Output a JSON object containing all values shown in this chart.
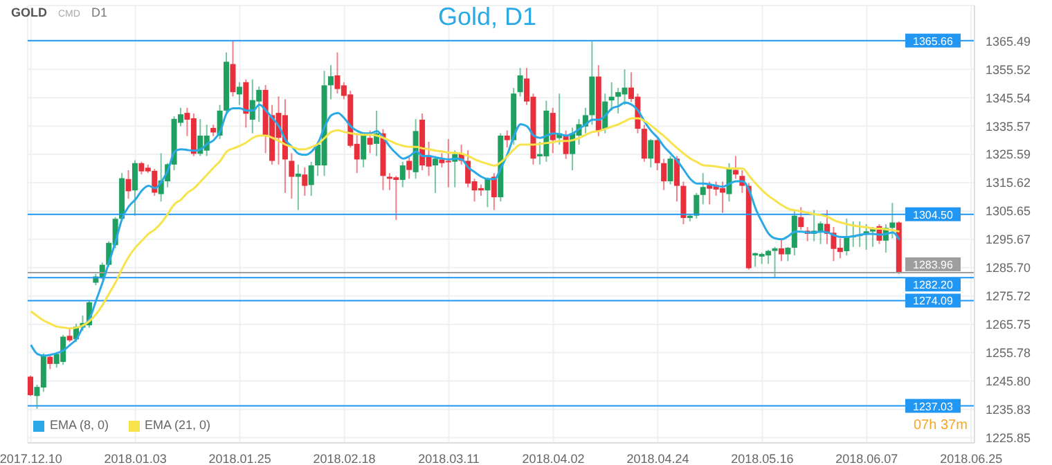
{
  "chart_data": {
    "type": "candlestick",
    "title": "Gold, D1",
    "annotations": [
      "GOLD",
      "CMD",
      "D1",
      "07h 37m"
    ],
    "categories": [
      "2017.12.10",
      null,
      null,
      null,
      null,
      null,
      null,
      null,
      null,
      null,
      null,
      null,
      null,
      null,
      null,
      null,
      "2018.01.03",
      null,
      null,
      null,
      null,
      null,
      null,
      null,
      null,
      null,
      null,
      null,
      null,
      null,
      null,
      null,
      "2018.01.25",
      null,
      null,
      null,
      null,
      null,
      null,
      null,
      null,
      null,
      null,
      null,
      null,
      null,
      null,
      null,
      "2018.02.18",
      null,
      null,
      null,
      null,
      null,
      null,
      null,
      null,
      null,
      null,
      null,
      null,
      null,
      null,
      null,
      "2018.03.11",
      null,
      null,
      null,
      null,
      null,
      null,
      null,
      null,
      null,
      null,
      null,
      null,
      null,
      null,
      null,
      "2018.04.02",
      null,
      null,
      null,
      null,
      null,
      null,
      null,
      null,
      null,
      null,
      null,
      null,
      null,
      null,
      null,
      "2018.04.24",
      null,
      null,
      null,
      null,
      null,
      null,
      null,
      null,
      null,
      null,
      null,
      null,
      null,
      null,
      null,
      "2018.05.16",
      null,
      null,
      null,
      null,
      null,
      null,
      null,
      null,
      null,
      null,
      null,
      null,
      null,
      null,
      null,
      "2018.06.07",
      null,
      null,
      null,
      null,
      null,
      null,
      null,
      null,
      null,
      null,
      null,
      null,
      null,
      null,
      null,
      "2018.06.25"
    ],
    "ohlc": [
      [
        1247.3,
        1247.7,
        1240.5,
        1240.8
      ],
      [
        1240.5,
        1244.5,
        1236,
        1243.7
      ],
      [
        1243.5,
        1255.5,
        1242,
        1255
      ],
      [
        1254.3,
        1255,
        1250,
        1251.8
      ],
      [
        1251.8,
        1256,
        1250.5,
        1255.3
      ],
      [
        1252.5,
        1262,
        1251.5,
        1261.4
      ],
      [
        1261.7,
        1264,
        1259.5,
        1260.1
      ],
      [
        1260.5,
        1266,
        1259.5,
        1264.9
      ],
      [
        1264.6,
        1268.8,
        1263.5,
        1266.2
      ],
      [
        1265.4,
        1274,
        1264.5,
        1273.5
      ],
      [
        1280.4,
        1283.5,
        1279.5,
        1282.6
      ],
      [
        1282,
        1287.5,
        1281.5,
        1286.7
      ],
      [
        1286.7,
        1295,
        1286,
        1294.4
      ],
      [
        1293.6,
        1303.5,
        1292.5,
        1302.9
      ],
      [
        1302.9,
        1319,
        1302,
        1317.2
      ],
      [
        1316.9,
        1320,
        1310,
        1312.6
      ],
      [
        1312.9,
        1323.5,
        1304,
        1322.5
      ],
      [
        1322.5,
        1323,
        1318.5,
        1319.6
      ],
      [
        1320.9,
        1322,
        1319,
        1319.6
      ],
      [
        1319.8,
        1320.5,
        1311,
        1312.1
      ],
      [
        1311.6,
        1326,
        1309,
        1316.4
      ],
      [
        1316.1,
        1322.5,
        1314,
        1322.1
      ],
      [
        1322,
        1339,
        1320,
        1338.1
      ],
      [
        1336.7,
        1342,
        1335.5,
        1339.7
      ],
      [
        1340.2,
        1342,
        1332,
        1337.8
      ],
      [
        1338.3,
        1340,
        1325,
        1325.8
      ],
      [
        1325.8,
        1338,
        1325,
        1332.2
      ],
      [
        1326.9,
        1336,
        1325,
        1332.2
      ],
      [
        1334.9,
        1336,
        1332,
        1333.3
      ],
      [
        1332.2,
        1343,
        1331,
        1341
      ],
      [
        1341,
        1361.5,
        1340,
        1358.2
      ],
      [
        1357.4,
        1365.66,
        1346,
        1347.5
      ],
      [
        1346.7,
        1351,
        1343,
        1349.4
      ],
      [
        1351,
        1352,
        1335,
        1339.9
      ],
      [
        1337.8,
        1352,
        1333,
        1344.7
      ],
      [
        1344.2,
        1349.5,
        1337,
        1348.3
      ],
      [
        1348.3,
        1350,
        1326,
        1332.2
      ],
      [
        1339.4,
        1343,
        1322,
        1323.3
      ],
      [
        1340.2,
        1346,
        1322,
        1331.4
      ],
      [
        1339.4,
        1345,
        1312,
        1323.8
      ],
      [
        1323.3,
        1326,
        1310,
        1317.7
      ],
      [
        1317.7,
        1322,
        1306,
        1318.8
      ],
      [
        1318.5,
        1321,
        1311,
        1314.5
      ],
      [
        1314.8,
        1323,
        1311,
        1321.7
      ],
      [
        1321.7,
        1330,
        1318,
        1329
      ],
      [
        1321.7,
        1355,
        1318,
        1349.9
      ],
      [
        1349.9,
        1357,
        1345,
        1353.1
      ],
      [
        1353.4,
        1361.5,
        1347,
        1348.6
      ],
      [
        1349.9,
        1351,
        1345,
        1346.2
      ],
      [
        1346.7,
        1348,
        1328,
        1328.6
      ],
      [
        1329.3,
        1333,
        1319,
        1323.8
      ],
      [
        1323.8,
        1333,
        1321,
        1332.2
      ],
      [
        1331.4,
        1334,
        1326,
        1329
      ],
      [
        1329.3,
        1341,
        1325,
        1333
      ],
      [
        1333,
        1334.5,
        1313,
        1318
      ],
      [
        1317.7,
        1319,
        1313,
        1317
      ],
      [
        1317.5,
        1318,
        1302.5,
        1316.6
      ],
      [
        1316.6,
        1323,
        1314,
        1321.7
      ],
      [
        1323.3,
        1325,
        1317,
        1320.1
      ],
      [
        1319.3,
        1338,
        1317,
        1333.8
      ],
      [
        1337.8,
        1340,
        1320,
        1321.7
      ],
      [
        1324.9,
        1330,
        1318,
        1321.3
      ],
      [
        1321.7,
        1325,
        1312,
        1324.1
      ],
      [
        1323.8,
        1326,
        1321,
        1322.5
      ],
      [
        1323.3,
        1331,
        1314,
        1322.8
      ],
      [
        1323,
        1327,
        1314,
        1325.7
      ],
      [
        1325.7,
        1329,
        1322,
        1323.3
      ],
      [
        1323.3,
        1327,
        1314,
        1315.3
      ],
      [
        1316.1,
        1317,
        1309,
        1312.9
      ],
      [
        1313.7,
        1315,
        1311,
        1312.9
      ],
      [
        1312.9,
        1317.5,
        1307,
        1316.9
      ],
      [
        1317.7,
        1319,
        1306,
        1310.5
      ],
      [
        1310.5,
        1333,
        1309,
        1332.2
      ],
      [
        1332.2,
        1334,
        1328,
        1330.6
      ],
      [
        1330.6,
        1349,
        1329,
        1347
      ],
      [
        1347.5,
        1356,
        1346,
        1353.4
      ],
      [
        1352.3,
        1356,
        1343,
        1344.2
      ],
      [
        1345.9,
        1347,
        1322,
        1324.1
      ],
      [
        1324.9,
        1330,
        1322,
        1325.7
      ],
      [
        1324.9,
        1344.5,
        1323,
        1341
      ],
      [
        1340.2,
        1342,
        1326,
        1330.6
      ],
      [
        1331.3,
        1347,
        1329,
        1333
      ],
      [
        1332.5,
        1334,
        1324,
        1325.7
      ],
      [
        1325.7,
        1335,
        1320,
        1333
      ],
      [
        1332.2,
        1338,
        1329,
        1336.2
      ],
      [
        1335.4,
        1342,
        1333,
        1339.4
      ],
      [
        1339.4,
        1365.3,
        1336,
        1353
      ],
      [
        1353,
        1357,
        1332,
        1333.8
      ],
      [
        1334.6,
        1347,
        1333,
        1344.2
      ],
      [
        1344.6,
        1351,
        1341,
        1345.9
      ],
      [
        1345.9,
        1349,
        1340,
        1347.5
      ],
      [
        1346.7,
        1355.5,
        1343,
        1349.1
      ],
      [
        1349.1,
        1354.5,
        1344,
        1345.1
      ],
      [
        1345.9,
        1347,
        1333,
        1334.6
      ],
      [
        1334.6,
        1336,
        1323,
        1324.1
      ],
      [
        1324.1,
        1331,
        1321,
        1330.6
      ],
      [
        1330.6,
        1331,
        1320,
        1322.5
      ],
      [
        1322.5,
        1324,
        1313,
        1316.1
      ],
      [
        1316.1,
        1325,
        1315,
        1324.1
      ],
      [
        1324.1,
        1325,
        1309,
        1314.5
      ],
      [
        1314.5,
        1316,
        1301,
        1303.2
      ],
      [
        1303.2,
        1304.5,
        1302,
        1304
      ],
      [
        1304,
        1312,
        1303,
        1311.3
      ],
      [
        1311.3,
        1319,
        1308,
        1314.1
      ],
      [
        1314.8,
        1316,
        1308,
        1313.5
      ],
      [
        1314.8,
        1316,
        1311,
        1313.2
      ],
      [
        1313.7,
        1316,
        1305,
        1312.1
      ],
      [
        1311.6,
        1322.5,
        1309,
        1320.9
      ],
      [
        1320.1,
        1325,
        1317,
        1318.5
      ],
      [
        1318,
        1320,
        1312,
        1314.5
      ],
      [
        1314.5,
        1315.5,
        1285,
        1285.5
      ],
      [
        1290,
        1291,
        1286,
        1290.8
      ],
      [
        1289.6,
        1291,
        1287,
        1290.5
      ],
      [
        1290,
        1292,
        1287,
        1291.6
      ],
      [
        1291.6,
        1293,
        1282.2,
        1292.5
      ],
      [
        1292.5,
        1296,
        1288,
        1290.4
      ],
      [
        1290.4,
        1293,
        1288,
        1292.7
      ],
      [
        1292.7,
        1306,
        1290,
        1304
      ],
      [
        1303.5,
        1307,
        1299,
        1300
      ],
      [
        1298.7,
        1300,
        1295,
        1297.6
      ],
      [
        1297.6,
        1306,
        1295,
        1298.7
      ],
      [
        1298.4,
        1302,
        1294,
        1301.3
      ],
      [
        1301.1,
        1306,
        1294,
        1297.6
      ],
      [
        1298,
        1300,
        1288,
        1292.3
      ],
      [
        1292.7,
        1296,
        1289,
        1291.2
      ],
      [
        1291.5,
        1303,
        1290,
        1296.5
      ],
      [
        1296.5,
        1302,
        1293,
        1296.9
      ],
      [
        1296.9,
        1302,
        1293,
        1297.3
      ],
      [
        1297.3,
        1301,
        1292,
        1298.5
      ],
      [
        1298.4,
        1300,
        1293,
        1299.7
      ],
      [
        1300.3,
        1301,
        1294,
        1295.2
      ],
      [
        1295.2,
        1301,
        1291,
        1299.7
      ],
      [
        1299.7,
        1308.5,
        1296,
        1301.6
      ],
      [
        1301.6,
        1302,
        1283.5,
        1283.96
      ],
      null,
      null,
      null,
      null,
      null,
      null,
      null,
      null,
      null,
      null,
      null
    ],
    "series": [
      {
        "name": "EMA (8, 0)",
        "type": "line",
        "color": "#29a9e6",
        "values": [
          1258.5,
          1255.3,
          1254.7,
          1255.0,
          1255.6,
          1256.6,
          1258.5,
          1260.6,
          1264.9,
          1267.8,
          1274.3,
          1280.7,
          1287.9,
          1295.2,
          1303.2,
          1307.3,
          1309.7,
          1312.9,
          1314.5,
          1313.7,
          1316.1,
          1320.1,
          1326.6,
          1327.4,
          1327.1,
          1326.9,
          1327.4,
          1329.3,
          1330.6,
          1333.8,
          1340.2,
          1341.8,
          1341.8,
          1341.0,
          1341.0,
          1343.1,
          1341.0,
          1338.3,
          1335.4,
          1330.6,
          1328.2,
          1325.8,
          1325.4,
          1326.6,
          1329.8,
          1335.4,
          1339.4,
          1340.2,
          1338.3,
          1335.4,
          1333.8,
          1333.0,
          1333.0,
          1333.8,
          1331.4,
          1328.2,
          1325.8,
          1324.1,
          1325.0,
          1326.6,
          1325.0,
          1325.0,
          1324.5,
          1324.1,
          1323.8,
          1324.1,
          1323.8,
          1320.9,
          1319.3,
          1317.7,
          1316.9,
          1316.9,
          1320.9,
          1325.8,
          1332.2,
          1336.2,
          1335.4,
          1332.2,
          1331.4,
          1332.2,
          1333.0,
          1332.7,
          1332.2,
          1333.0,
          1334.6,
          1336.2,
          1337.8,
          1337.8,
          1339.4,
          1341.8,
          1342.6,
          1343.8,
          1343.1,
          1341.0,
          1337.0,
          1333.8,
          1331.4,
          1328.2,
          1325.8,
          1323.3,
          1320.1,
          1316.9,
          1315.3,
          1315.3,
          1315.0,
          1314.5,
          1314.2,
          1315.3,
          1316.1,
          1316.1,
          1312.9,
          1306.4,
          1301.6,
          1297.6,
          1296.0,
          1295.7,
          1296.8,
          1298.4,
          1298.4,
          1298.1,
          1298.1,
          1298.4,
          1298.1,
          1297.1,
          1296.5,
          1296.5,
          1296.8,
          1297.3,
          1297.6,
          1297.6,
          1297.3,
          1297.6,
          1298.1,
          1295.5,
          null,
          null,
          null,
          null,
          null,
          null,
          null,
          null,
          null,
          null,
          null
        ]
      },
      {
        "name": "EMA (21, 0)",
        "type": "line",
        "color": "#f7e34b",
        "values": [
          1270.3,
          1268.6,
          1267.0,
          1265.9,
          1264.9,
          1264.6,
          1264.3,
          1264.6,
          1265.4,
          1267.0,
          1269.4,
          1272.7,
          1276.7,
          1280.7,
          1285.5,
          1289.6,
          1292.8,
          1295.2,
          1297.6,
          1299.2,
          1301.6,
          1304.8,
          1308.1,
          1309.7,
          1312.1,
          1313.7,
          1316.1,
          1318.5,
          1321.0,
          1323.3,
          1326.6,
          1327.7,
          1328.6,
          1329.8,
          1331.4,
          1332.2,
          1332.2,
          1331.4,
          1330.3,
          1329.0,
          1328.2,
          1327.4,
          1327.4,
          1328.2,
          1329.3,
          1331.4,
          1333.5,
          1334.1,
          1333.5,
          1333.0,
          1332.7,
          1332.5,
          1332.5,
          1332.2,
          1331.4,
          1330.3,
          1329.3,
          1328.6,
          1328.2,
          1328.2,
          1327.7,
          1327.4,
          1326.9,
          1326.6,
          1326.2,
          1326.1,
          1325.8,
          1325.0,
          1323.8,
          1322.9,
          1322.2,
          1321.6,
          1322.9,
          1325.0,
          1327.4,
          1329.0,
          1329.0,
          1329.0,
          1329.3,
          1329.6,
          1329.9,
          1330.3,
          1330.3,
          1330.6,
          1331.4,
          1332.5,
          1333.5,
          1333.8,
          1334.6,
          1335.4,
          1336.2,
          1337.3,
          1338.3,
          1338.3,
          1337.3,
          1335.7,
          1333.8,
          1331.9,
          1329.8,
          1327.7,
          1325.8,
          1324.1,
          1322.9,
          1321.7,
          1321.6,
          1321.3,
          1320.9,
          1320.6,
          1320.6,
          1320.6,
          1318.0,
          1315.3,
          1312.9,
          1310.9,
          1309.3,
          1307.7,
          1306.4,
          1305.9,
          1305.5,
          1305.0,
          1304.5,
          1304.2,
          1303.6,
          1302.4,
          1301.6,
          1301.0,
          1300.5,
          1300.2,
          1299.9,
          1299.5,
          1299.4,
          1299.2,
          1298.9,
          1298.4,
          null,
          null,
          null,
          null,
          null,
          null,
          null,
          null,
          null,
          null,
          null
        ]
      }
    ],
    "ylim": [
      1224,
      1378
    ],
    "yticks": [
      1225.85,
      1235.83,
      {
        "value": 1245.8,
        "label": "1245.80"
      },
      1255.78,
      1265.75,
      {
        "value": 1275.72,
        "label": "1275.72"
      },
      {
        "value": 1285.7,
        "label": "1285.70"
      },
      1295.67,
      1305.65,
      1315.62,
      1325.59,
      1335.57,
      1345.54,
      1355.52,
      1365.49
    ],
    "ref_lines": [
      {
        "axis": "y",
        "value": 1365.66,
        "label": "1365.66",
        "color": "#2196f3"
      },
      {
        "axis": "y",
        "value": 1304.5,
        "label": "1304.50",
        "color": "#2196f3"
      },
      {
        "axis": "y",
        "value": 1283.96,
        "label": "1283.96",
        "color": "#9e9e9e"
      },
      {
        "axis": "y",
        "value": 1282.2,
        "label": "1282.20",
        "color": "#2196f3"
      },
      {
        "axis": "y",
        "value": 1274.09,
        "label": "1274.09",
        "color": "#2196f3"
      },
      {
        "axis": "y",
        "value": 1237.03,
        "label": "1237.03",
        "color": "#2196f3"
      }
    ],
    "grid": true,
    "legend": "bottom left"
  }
}
